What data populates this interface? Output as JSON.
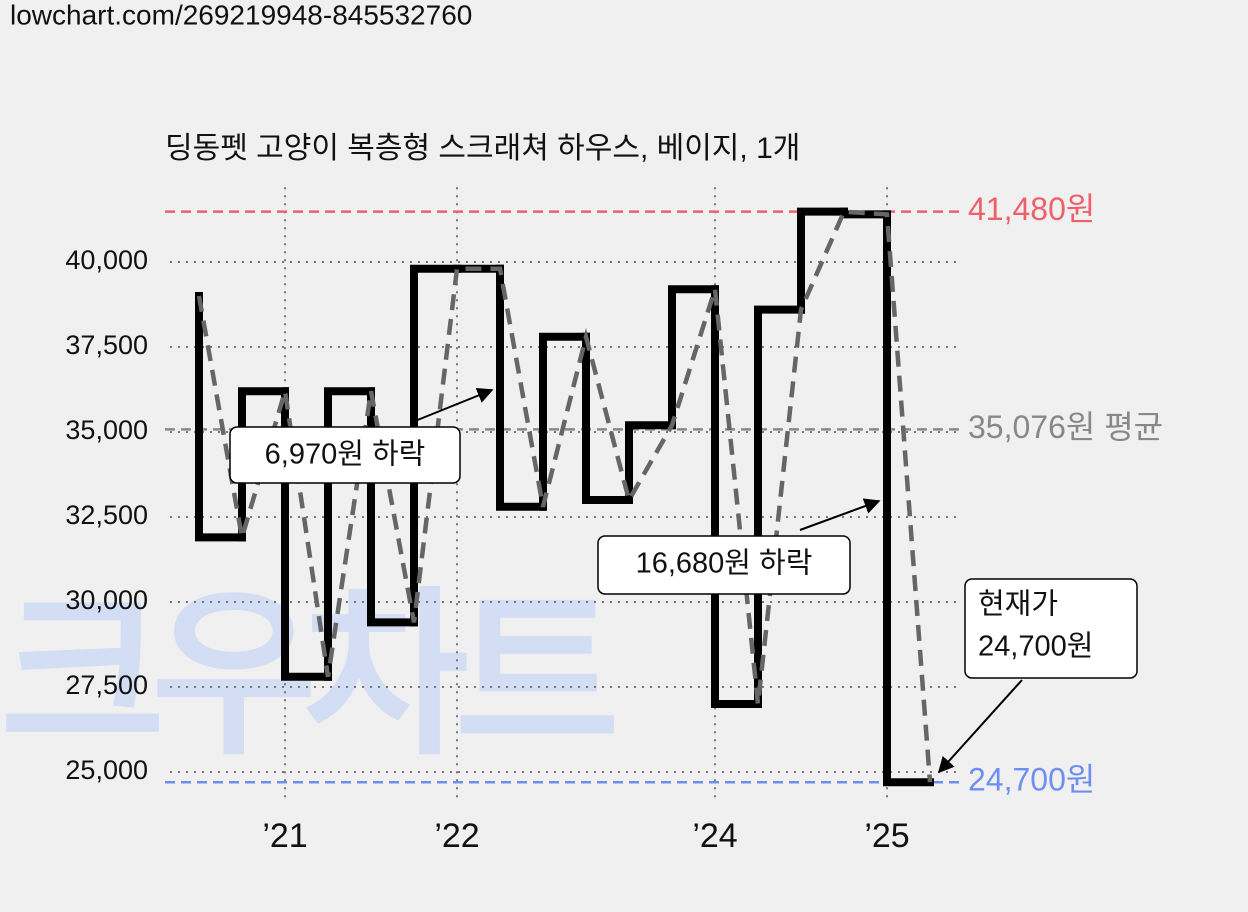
{
  "header": "lowchart.com/269219948-845532760",
  "watermark": "크우차트",
  "chart_data": {
    "type": "step",
    "title": "딩동펫 고양이 복층형 스크래쳐 하우스, 베이지, 1개",
    "categories": [
      null,
      null,
      "’21",
      null,
      null,
      null,
      "’22",
      null,
      null,
      null,
      null,
      null,
      "’24",
      null,
      null,
      null,
      "’25",
      null
    ],
    "series": [
      {
        "color": "#000000",
        "dash_color": "#666666",
        "values": [
          39000,
          31900,
          36200,
          27800,
          36200,
          29400,
          39800,
          39800,
          32800,
          37800,
          33000,
          35200,
          39200,
          27000,
          38600,
          41480,
          41400,
          24700
        ]
      }
    ],
    "ylim": [
      24200,
      42200
    ],
    "yticks": [
      {
        "value": 25000,
        "label": "25,000"
      },
      {
        "value": 27500,
        "label": "27,500"
      },
      {
        "value": 30000,
        "label": "30,000"
      },
      {
        "value": 32500,
        "label": "32,500"
      },
      {
        "value": 35000,
        "label": "35,000"
      },
      {
        "value": 37500,
        "label": "37,500"
      },
      {
        "value": 40000,
        "label": "40,000"
      }
    ],
    "grid": true,
    "reference_lines": [
      {
        "value": 41480,
        "label": "41,480원",
        "color": "#f0606a"
      },
      {
        "value": 35076,
        "label": "35,076원 평균",
        "color": "#888888"
      },
      {
        "value": 24700,
        "label": "24,700원",
        "color": "#6f8ff0"
      }
    ],
    "annotations": [
      [
        "6,970원 하락"
      ],
      [
        "16,680원 하락"
      ],
      [
        "현재가",
        "24,700원"
      ]
    ]
  }
}
